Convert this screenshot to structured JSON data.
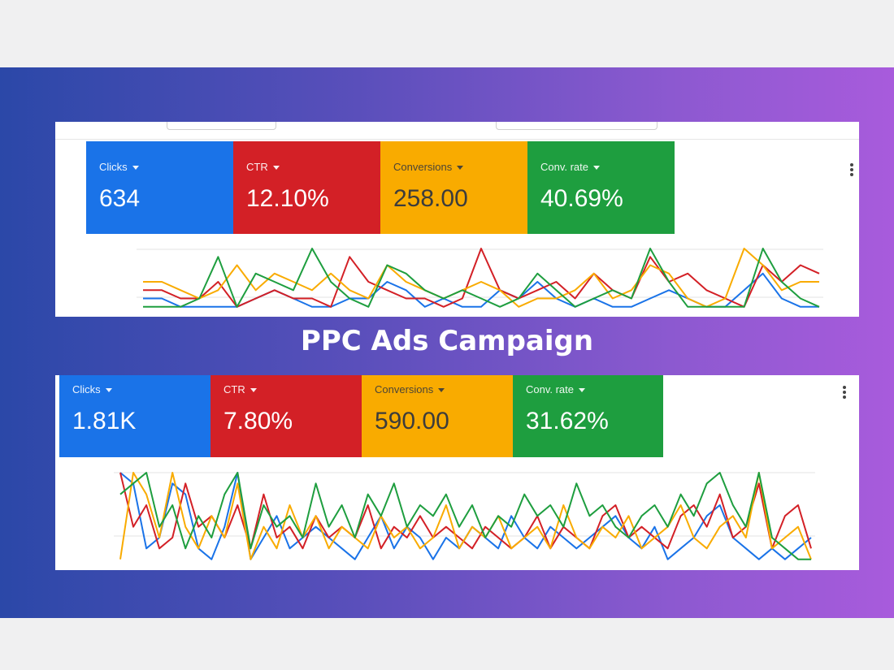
{
  "title": "PPC Ads Campaign",
  "colors": {
    "clicks": "#1a73e8",
    "ctr": "#d32026",
    "conversions": "#f9ab00",
    "conv_rate": "#1e9e3f"
  },
  "top_panel": {
    "metrics": [
      {
        "label": "Clicks",
        "value": "634"
      },
      {
        "label": "CTR",
        "value": "12.10%"
      },
      {
        "label": "Conversions",
        "value": "258.00"
      },
      {
        "label": "Conv. rate",
        "value": "40.69%"
      }
    ]
  },
  "bottom_panel": {
    "metrics": [
      {
        "label": "Clicks",
        "value": "1.81K"
      },
      {
        "label": "CTR",
        "value": "7.80%"
      },
      {
        "label": "Conversions",
        "value": "590.00"
      },
      {
        "label": "Conv. rate",
        "value": "31.62%"
      }
    ]
  },
  "chart_data": [
    {
      "type": "line",
      "title": "",
      "grid": true,
      "series": [
        {
          "values": [
            2,
            2,
            1,
            1,
            1,
            1,
            2,
            3,
            2,
            1,
            1,
            2,
            2,
            4,
            3,
            1,
            2,
            1,
            1,
            3,
            2,
            4,
            2,
            1,
            2,
            1,
            1,
            2,
            3,
            2,
            1,
            1,
            3,
            5,
            2,
            1,
            1
          ]
        },
        {
          "values": [
            3,
            3,
            2,
            2,
            4,
            1,
            2,
            3,
            2,
            2,
            1,
            7,
            4,
            3,
            2,
            2,
            1,
            2,
            8,
            3,
            2,
            3,
            4,
            2,
            5,
            3,
            2,
            7,
            4,
            5,
            3,
            2,
            1,
            6,
            4,
            6,
            5
          ]
        },
        {
          "values": [
            4,
            4,
            3,
            2,
            3,
            6,
            3,
            5,
            4,
            3,
            5,
            3,
            2,
            6,
            4,
            3,
            2,
            3,
            4,
            3,
            1,
            2,
            2,
            3,
            5,
            2,
            3,
            6,
            5,
            2,
            1,
            2,
            8,
            6,
            3,
            4,
            4
          ]
        },
        {
          "values": [
            1,
            1,
            1,
            2,
            7,
            1,
            5,
            4,
            3,
            8,
            4,
            2,
            1,
            6,
            5,
            3,
            2,
            3,
            2,
            1,
            2,
            5,
            3,
            1,
            2,
            3,
            2,
            8,
            4,
            1,
            1,
            1,
            1,
            8,
            4,
            2,
            1
          ]
        }
      ]
    },
    {
      "type": "line",
      "title": "",
      "grid": true,
      "series": [
        {
          "values": [
            9,
            8,
            2,
            3,
            8,
            7,
            2,
            1,
            4,
            9,
            1,
            3,
            5,
            2,
            3,
            4,
            3,
            2,
            1,
            3,
            5,
            2,
            4,
            3,
            1,
            3,
            2,
            4,
            3,
            2,
            5,
            3,
            2,
            4,
            3,
            2,
            3,
            4,
            5,
            3,
            2,
            4,
            1,
            2,
            3,
            5,
            6,
            3,
            2,
            1,
            2,
            1,
            2,
            3
          ]
        },
        {
          "values": [
            9,
            4,
            6,
            2,
            3,
            8,
            4,
            5,
            3,
            6,
            2,
            7,
            3,
            4,
            2,
            5,
            3,
            4,
            3,
            6,
            2,
            4,
            3,
            5,
            3,
            4,
            3,
            2,
            4,
            3,
            2,
            3,
            5,
            2,
            4,
            3,
            2,
            5,
            6,
            3,
            4,
            3,
            2,
            5,
            6,
            4,
            7,
            3,
            4,
            8,
            2,
            5,
            6,
            2
          ]
        },
        {
          "values": [
            1,
            9,
            7,
            3,
            9,
            4,
            2,
            5,
            3,
            8,
            1,
            4,
            2,
            6,
            3,
            5,
            2,
            4,
            3,
            2,
            5,
            3,
            4,
            2,
            3,
            6,
            2,
            4,
            3,
            5,
            2,
            3,
            4,
            2,
            6,
            3,
            2,
            4,
            3,
            5,
            2,
            3,
            4,
            6,
            3,
            2,
            4,
            5,
            3,
            9,
            2,
            3,
            4,
            1
          ]
        },
        {
          "values": [
            7,
            8,
            9,
            4,
            6,
            2,
            5,
            3,
            7,
            9,
            2,
            6,
            4,
            5,
            3,
            8,
            4,
            6,
            3,
            7,
            5,
            8,
            4,
            6,
            5,
            7,
            4,
            6,
            3,
            5,
            4,
            7,
            5,
            6,
            4,
            8,
            5,
            6,
            4,
            3,
            5,
            6,
            4,
            7,
            5,
            8,
            9,
            6,
            4,
            9,
            3,
            2,
            1,
            1
          ]
        }
      ]
    }
  ]
}
